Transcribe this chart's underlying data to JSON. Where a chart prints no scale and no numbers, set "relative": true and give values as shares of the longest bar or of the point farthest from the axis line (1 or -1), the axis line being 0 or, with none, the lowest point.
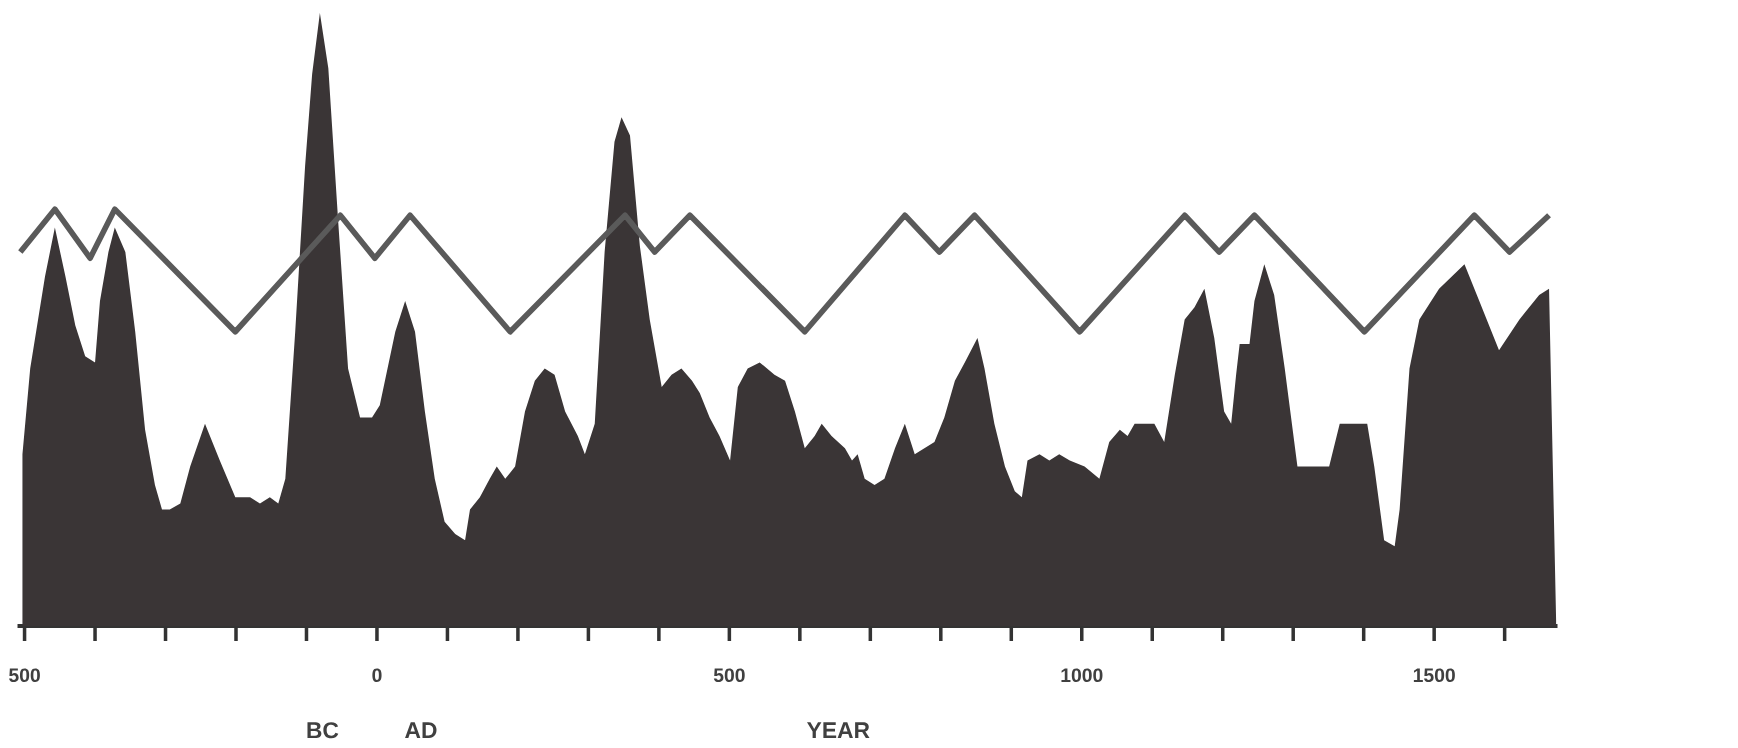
{
  "chart_data": {
    "type": "area",
    "relative": true,
    "xlabel": "YEAR",
    "annotations": [
      "BC",
      "AD"
    ],
    "xlim": [
      -510,
      1675
    ],
    "xticks": [
      {
        "value": -500,
        "label": "500"
      },
      {
        "value": -400,
        "label": null
      },
      {
        "value": -300,
        "label": null
      },
      {
        "value": -200,
        "label": null
      },
      {
        "value": -100,
        "label": null
      },
      0,
      {
        "value": 100,
        "label": null
      },
      {
        "value": 200,
        "label": null
      },
      {
        "value": 300,
        "label": null
      },
      {
        "value": 400,
        "label": null
      },
      500,
      {
        "value": 600,
        "label": null
      },
      {
        "value": 700,
        "label": null
      },
      {
        "value": 800,
        "label": null
      },
      {
        "value": 900,
        "label": null
      },
      1000,
      {
        "value": 1100,
        "label": null
      },
      {
        "value": 1200,
        "label": null
      },
      {
        "value": 1300,
        "label": null
      },
      {
        "value": 1400,
        "label": null
      },
      1500,
      {
        "value": 1600,
        "label": null
      }
    ],
    "series": [
      {
        "color": "#3a3536",
        "x": [
          -503,
          -492,
          -471,
          -457,
          -442,
          -428,
          -414,
          -400,
          -393,
          -381,
          -372,
          -357,
          -343,
          -329,
          -315,
          -305,
          -294,
          -279,
          -265,
          -244,
          -223,
          -201,
          -180,
          -166,
          -152,
          -140,
          -130,
          -116,
          -102,
          -92,
          -81,
          -69,
          -55,
          -41,
          -24,
          -7,
          4,
          26,
          40,
          54,
          68,
          82,
          96,
          111,
          125,
          132,
          146,
          160,
          170,
          182,
          196,
          210,
          224,
          238,
          252,
          267,
          285,
          295,
          309,
          323,
          337,
          347,
          359,
          373,
          387,
          404,
          418,
          432,
          447,
          458,
          472,
          486,
          501,
          512,
          526,
          543,
          564,
          579,
          593,
          607,
          621,
          631,
          645,
          664,
          674,
          682,
          692,
          706,
          720,
          735,
          749,
          763,
          777,
          791,
          805,
          820,
          834,
          852,
          862,
          876,
          891,
          905,
          915,
          923,
          940,
          954,
          968,
          983,
          1004,
          1025,
          1039,
          1054,
          1065,
          1075,
          1089,
          1103,
          1117,
          1132,
          1146,
          1160,
          1174,
          1188,
          1202,
          1212,
          1219,
          1224,
          1238,
          1245,
          1259,
          1273,
          1288,
          1306,
          1330,
          1351,
          1366,
          1387,
          1405,
          1415,
          1429,
          1444,
          1451,
          1465,
          1479,
          1507,
          1543,
          1564,
          1592,
          1621,
          1649,
          1663,
          1673
        ],
        "values": [
          0.28,
          0.42,
          0.57,
          0.65,
          0.57,
          0.49,
          0.44,
          0.43,
          0.53,
          0.61,
          0.65,
          0.61,
          0.48,
          0.32,
          0.23,
          0.19,
          0.19,
          0.2,
          0.26,
          0.33,
          0.27,
          0.21,
          0.21,
          0.2,
          0.21,
          0.2,
          0.24,
          0.48,
          0.75,
          0.9,
          1.0,
          0.91,
          0.66,
          0.42,
          0.34,
          0.34,
          0.36,
          0.48,
          0.53,
          0.48,
          0.35,
          0.24,
          0.17,
          0.15,
          0.14,
          0.19,
          0.21,
          0.24,
          0.26,
          0.24,
          0.26,
          0.35,
          0.4,
          0.42,
          0.41,
          0.35,
          0.31,
          0.28,
          0.33,
          0.61,
          0.79,
          0.83,
          0.8,
          0.62,
          0.5,
          0.39,
          0.41,
          0.42,
          0.4,
          0.38,
          0.34,
          0.31,
          0.27,
          0.39,
          0.42,
          0.43,
          0.41,
          0.4,
          0.35,
          0.29,
          0.31,
          0.33,
          0.31,
          0.29,
          0.27,
          0.28,
          0.24,
          0.23,
          0.24,
          0.29,
          0.33,
          0.28,
          0.29,
          0.3,
          0.34,
          0.4,
          0.43,
          0.47,
          0.42,
          0.33,
          0.26,
          0.22,
          0.21,
          0.27,
          0.28,
          0.27,
          0.28,
          0.27,
          0.26,
          0.24,
          0.3,
          0.32,
          0.31,
          0.33,
          0.33,
          0.33,
          0.3,
          0.41,
          0.5,
          0.52,
          0.55,
          0.47,
          0.35,
          0.33,
          0.41,
          0.46,
          0.46,
          0.53,
          0.59,
          0.54,
          0.42,
          0.26,
          0.26,
          0.26,
          0.33,
          0.33,
          0.33,
          0.26,
          0.14,
          0.13,
          0.19,
          0.42,
          0.5,
          0.55,
          0.59,
          0.53,
          0.45,
          0.5,
          0.54,
          0.55,
          0.01
        ]
      },
      {
        "type": "line",
        "color": "#5a5a5a",
        "x": [
          -506,
          -457,
          -407,
          -372,
          -201,
          -52,
          -3,
          47,
          189,
          352,
          394,
          444,
          607,
          749,
          798,
          848,
          997,
          1146,
          1195,
          1245,
          1401,
          1557,
          1607,
          1663
        ],
        "values": [
          0.61,
          0.68,
          0.6,
          0.68,
          0.48,
          0.67,
          0.6,
          0.67,
          0.48,
          0.67,
          0.61,
          0.67,
          0.48,
          0.67,
          0.61,
          0.67,
          0.48,
          0.67,
          0.61,
          0.67,
          0.48,
          0.67,
          0.61,
          0.67
        ]
      }
    ]
  }
}
